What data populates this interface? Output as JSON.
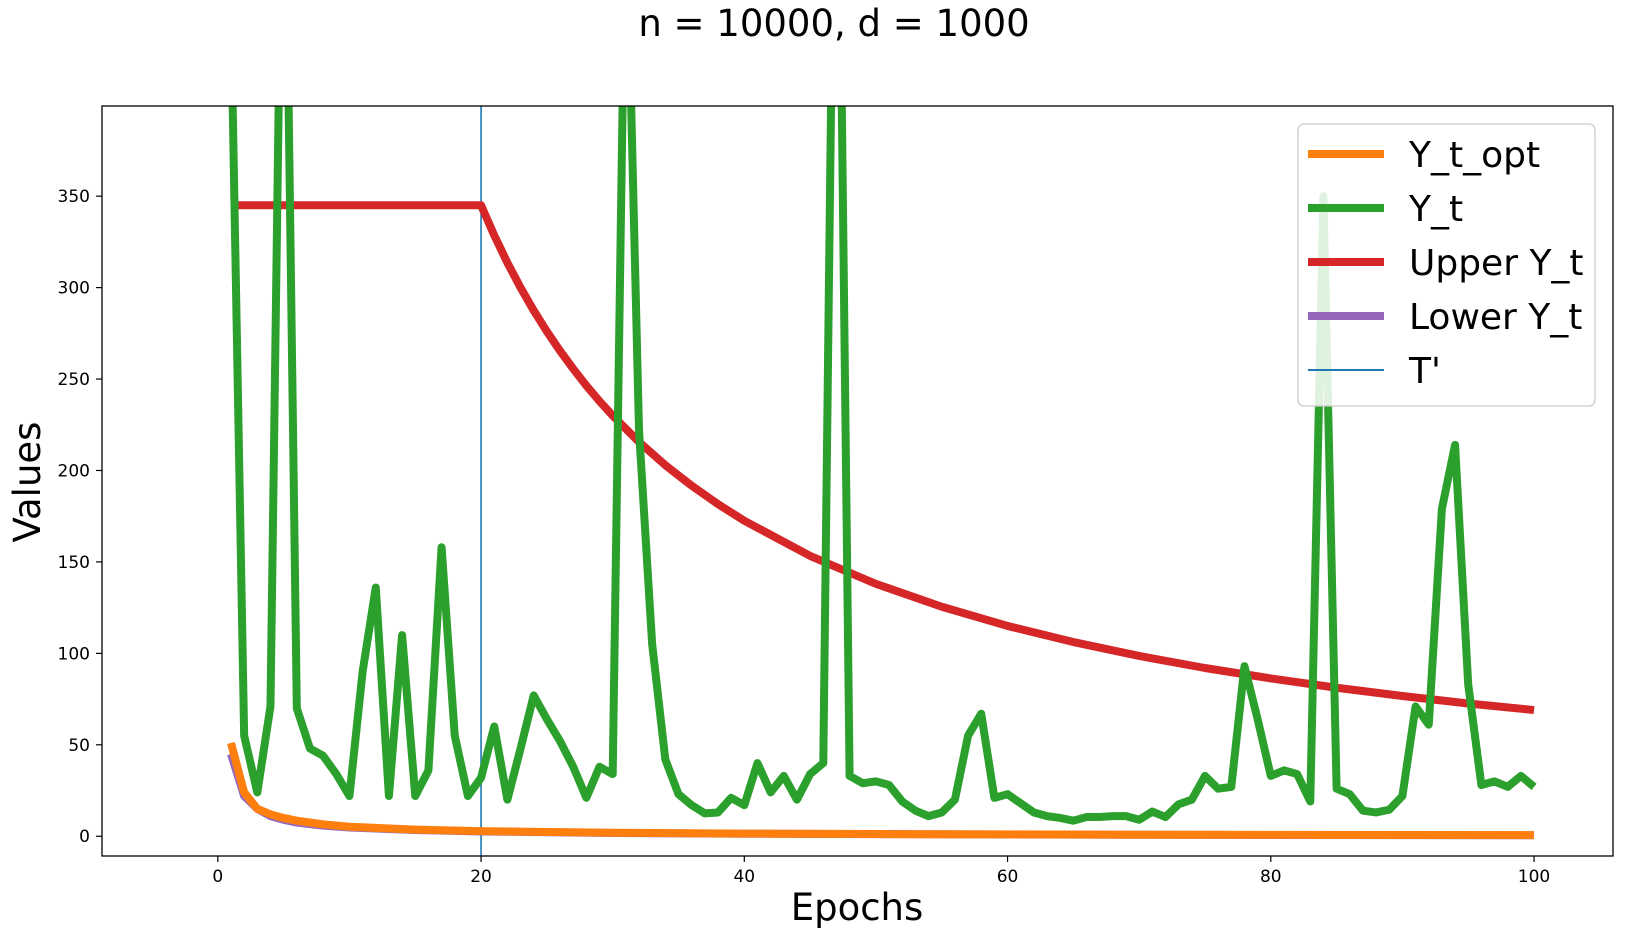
{
  "chart_data": {
    "type": "line",
    "title": "n = 10000, d = 1000",
    "xlabel": "Epochs",
    "ylabel": "Values",
    "xlim": [
      -8.8,
      106.0
    ],
    "ylim": [
      -10.8,
      399.3
    ],
    "x_ticks": [
      0,
      20,
      40,
      60,
      80,
      100
    ],
    "y_ticks": [
      0,
      50,
      100,
      150,
      200,
      250,
      300,
      350
    ],
    "grid": false,
    "legend_position": "top-right",
    "vline": {
      "name": "T'",
      "x": 20,
      "color": "#1f77b4"
    },
    "series": [
      {
        "name": "Y_t_opt",
        "color": "#ff7f0e",
        "x": [
          1,
          2,
          3,
          4,
          5,
          6,
          8,
          10,
          15,
          20,
          30,
          40,
          50,
          60,
          70,
          80,
          90,
          100
        ],
        "values": [
          51,
          24,
          15,
          12,
          10,
          8.5,
          6.5,
          5.2,
          3.6,
          2.8,
          1.9,
          1.45,
          1.2,
          1.0,
          0.85,
          0.75,
          0.65,
          0.6
        ]
      },
      {
        "name": "Y_t",
        "color": "#2ca02c",
        "x": [
          1,
          2,
          3,
          4,
          5,
          6,
          7,
          8,
          9,
          10,
          11,
          12,
          13,
          14,
          15,
          16,
          17,
          18,
          19,
          20,
          21,
          22,
          23,
          24,
          25,
          26,
          27,
          28,
          29,
          30,
          31,
          32,
          33,
          34,
          35,
          36,
          37,
          38,
          39,
          40,
          41,
          42,
          43,
          44,
          45,
          46,
          47,
          48,
          49,
          50,
          51,
          52,
          53,
          54,
          55,
          56,
          57,
          58,
          59,
          60,
          61,
          62,
          63,
          64,
          65,
          66,
          67,
          68,
          69,
          70,
          71,
          72,
          73,
          74,
          75,
          76,
          77,
          78,
          79,
          80,
          81,
          82,
          83,
          84,
          85,
          86,
          87,
          88,
          89,
          90,
          91,
          92,
          93,
          94,
          95,
          96,
          97,
          98,
          99,
          100
        ],
        "values": [
          450,
          55,
          24,
          71,
          600,
          70,
          48,
          44,
          34,
          22,
          90,
          136,
          22,
          110,
          22,
          36,
          158,
          55,
          22,
          32,
          60,
          20,
          48,
          77,
          64,
          52,
          38,
          21,
          38,
          34,
          520,
          222,
          105,
          42,
          23,
          17,
          12.5,
          13,
          21,
          17,
          40,
          24,
          33,
          20,
          34,
          40,
          650,
          33,
          29,
          30,
          28,
          19,
          14,
          11,
          13,
          20,
          55,
          67,
          21,
          23,
          18,
          13,
          11,
          10,
          8.5,
          10.5,
          10.5,
          11,
          11,
          9,
          13.5,
          10.5,
          17.5,
          20,
          33,
          26,
          27,
          93,
          64,
          33,
          36,
          34,
          19,
          350,
          26,
          23,
          14,
          13,
          14.5,
          22,
          71,
          61,
          179,
          214,
          83,
          28,
          30,
          27,
          33,
          27
        ]
      },
      {
        "name": "Upper Y_t",
        "color": "#d62728",
        "x": [
          1,
          20,
          21,
          22,
          23,
          24,
          25,
          26,
          27,
          28,
          29,
          30,
          32,
          34,
          36,
          38,
          40,
          45,
          50,
          55,
          60,
          65,
          70,
          75,
          80,
          85,
          90,
          95,
          100
        ],
        "values": [
          345,
          345,
          328.6,
          313.6,
          300,
          287.5,
          276,
          265.4,
          255.6,
          246.4,
          237.9,
          230,
          215.6,
          202.9,
          191.7,
          181.6,
          172.5,
          153.3,
          138,
          125.5,
          115,
          106.2,
          98.6,
          92,
          86.3,
          81.2,
          76.7,
          72.6,
          69
        ]
      },
      {
        "name": "Lower Y_t",
        "color": "#9467bd",
        "x": [
          1,
          2,
          3,
          4,
          5,
          6,
          8,
          10,
          15,
          20,
          30,
          40,
          50,
          60,
          70,
          80,
          90,
          100
        ],
        "values": [
          45,
          22,
          15,
          11,
          9,
          7.5,
          5.8,
          4.8,
          3.4,
          2.6,
          1.8,
          1.4,
          1.15,
          0.95,
          0.8,
          0.7,
          0.6,
          0.55
        ]
      }
    ]
  }
}
